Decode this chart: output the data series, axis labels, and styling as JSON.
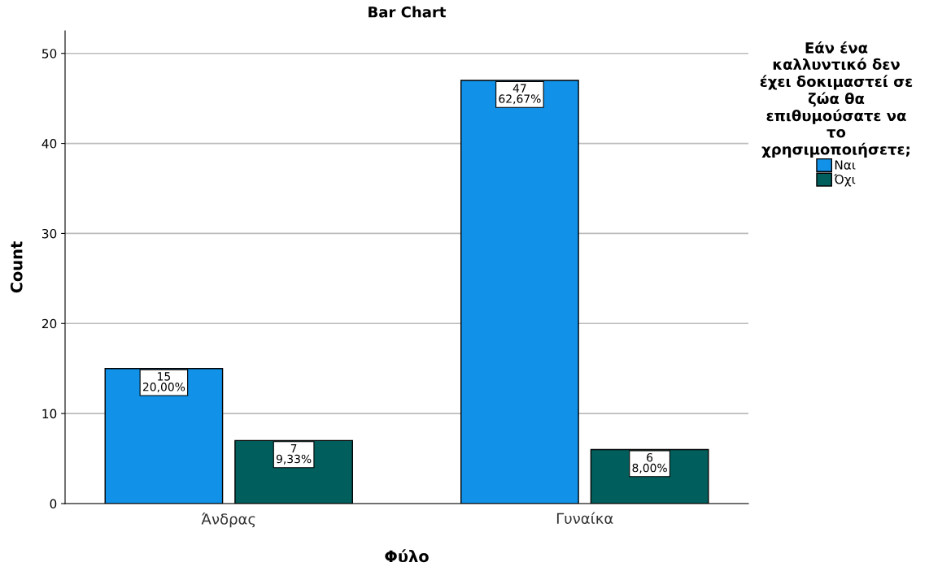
{
  "chart_data": {
    "type": "bar",
    "title": "Bar Chart",
    "xlabel": "Φύλο",
    "ylabel": "Count",
    "legend_title": "Εάν ένα\nκαλλυντικό δεν\nέχει δοκιμαστεί σε\nζώα θα\nεπιθυμούσατε να\nτο\nχρησιμοποιήσετε;",
    "categories": [
      "Άνδρας",
      "Γυναίκα"
    ],
    "series": [
      {
        "name": "Ναι",
        "color": "#1192e8",
        "values": [
          15,
          47
        ],
        "value_labels": [
          "15\n20,00%",
          "47\n62,67%"
        ]
      },
      {
        "name": "Όχι",
        "color": "#005f5c",
        "values": [
          7,
          6
        ],
        "value_labels": [
          "7\n9,33%",
          "6\n8,00%"
        ]
      }
    ],
    "ylim": [
      0,
      52.5
    ],
    "yticks": [
      0,
      10,
      20,
      30,
      40,
      50
    ],
    "grid": "y",
    "legend": "top right"
  }
}
